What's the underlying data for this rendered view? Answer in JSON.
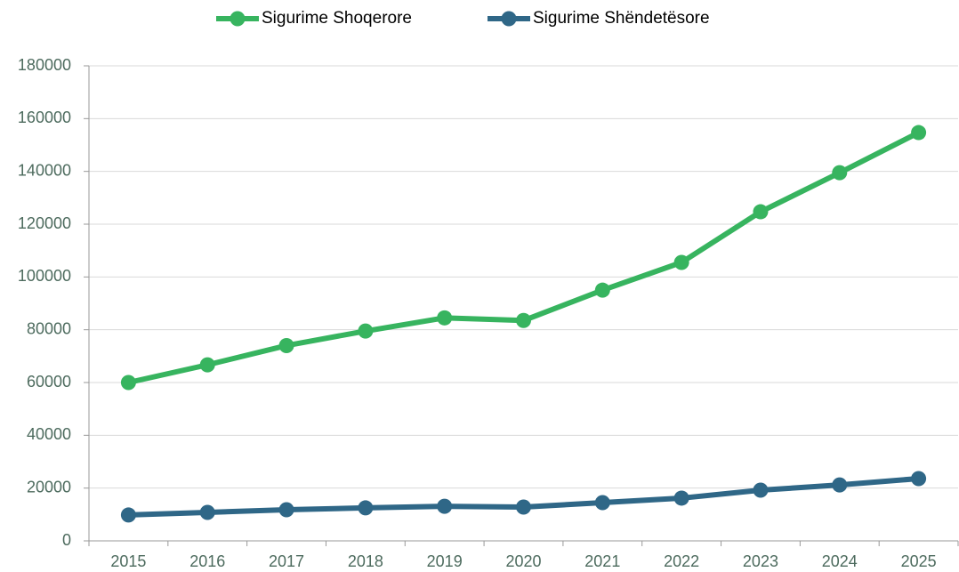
{
  "chart_data": {
    "type": "line",
    "categories": [
      "2015",
      "2016",
      "2017",
      "2018",
      "2019",
      "2020",
      "2021",
      "2022",
      "2023",
      "2024",
      "2025"
    ],
    "series": [
      {
        "name": "Sigurime Shoqerore",
        "color": "#37b45f",
        "values": [
          60000,
          66700,
          74000,
          79500,
          84500,
          83500,
          95000,
          105500,
          124700,
          139500,
          154700
        ]
      },
      {
        "name": "Sigurime Shëndetësore",
        "color": "#2f6787",
        "values": [
          9800,
          10800,
          11800,
          12500,
          13100,
          12800,
          14500,
          16200,
          19200,
          21200,
          23600
        ]
      }
    ],
    "ylim": [
      0,
      180000
    ],
    "yticks": [
      0,
      20000,
      40000,
      60000,
      80000,
      100000,
      120000,
      140000,
      160000,
      180000
    ],
    "grid": true,
    "legend": "top"
  }
}
